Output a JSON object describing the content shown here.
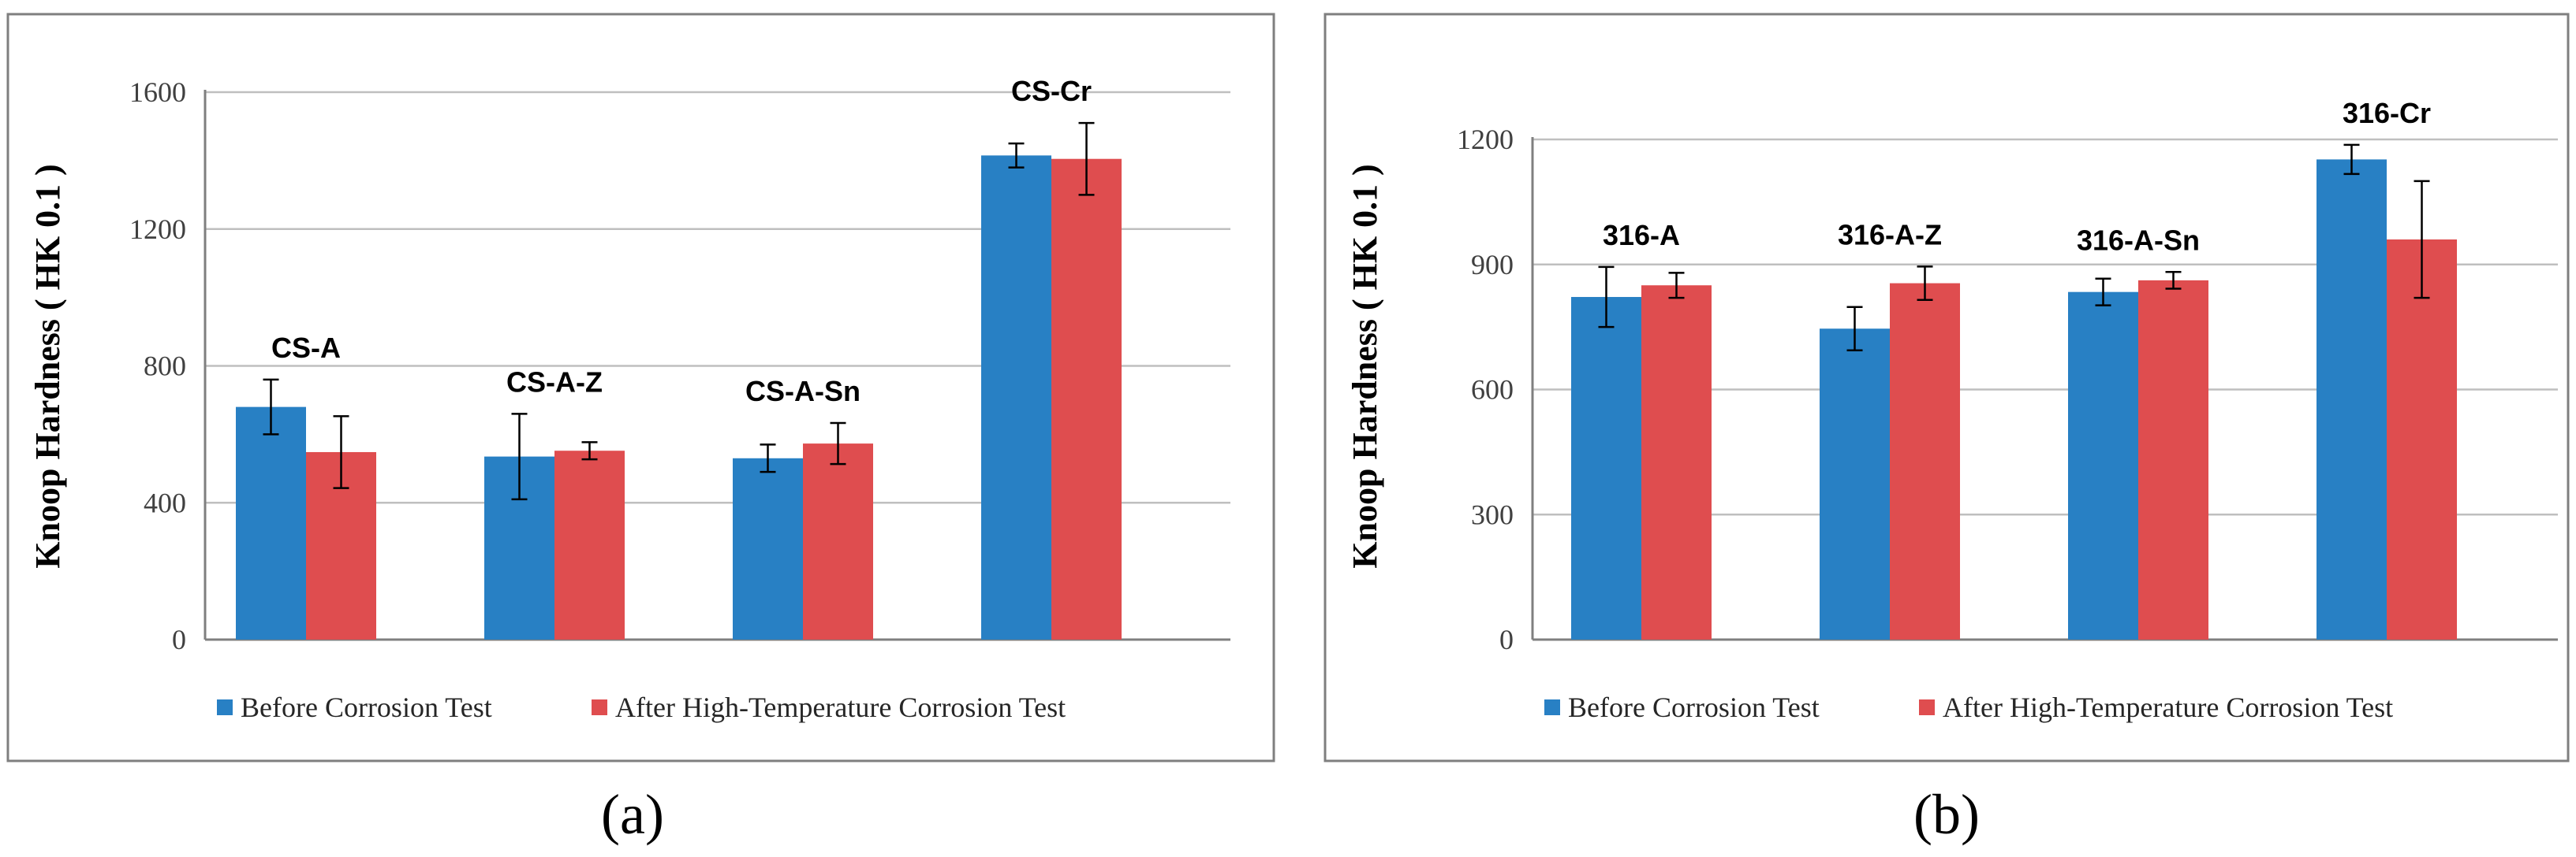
{
  "colors": {
    "before": "#2880c4",
    "after": "#df4d4f"
  },
  "legend": {
    "before": "Before Corrosion Test",
    "after": "After High-Temperature Corrosion Test"
  },
  "chart_data": [
    {
      "type": "bar",
      "panel_label": "(a)",
      "ylabel": "Knoop Hardness ( HK 0.1 )",
      "ylim": [
        0,
        1600
      ],
      "yticks": [
        0,
        400,
        800,
        1200,
        1600
      ],
      "categories": [
        "CS-A",
        "CS-A-Z",
        "CS-A-Sn",
        "CS-Cr"
      ],
      "series": [
        {
          "name": "Before Corrosion Test",
          "values": [
            680,
            535,
            530,
            1415
          ],
          "errors": [
            80,
            125,
            40,
            35
          ]
        },
        {
          "name": "After High-Temperature Corrosion Test",
          "values": [
            548,
            552,
            573,
            1405
          ],
          "errors": [
            105,
            25,
            60,
            105
          ]
        }
      ]
    },
    {
      "type": "bar",
      "panel_label": "(b)",
      "ylabel": "Knoop Hardness ( HK 0.1 )",
      "ylim": [
        0,
        1200
      ],
      "yticks": [
        0,
        300,
        600,
        900,
        1200
      ],
      "categories": [
        "316-A",
        "316-A-Z",
        "316-A-Sn",
        "316-Cr"
      ],
      "series": [
        {
          "name": "Before Corrosion Test",
          "values": [
            822,
            746,
            834,
            1152
          ],
          "errors": [
            72,
            52,
            32,
            35
          ]
        },
        {
          "name": "After High-Temperature Corrosion Test",
          "values": [
            850,
            855,
            862,
            960
          ],
          "errors": [
            30,
            40,
            20,
            140
          ]
        }
      ]
    }
  ]
}
